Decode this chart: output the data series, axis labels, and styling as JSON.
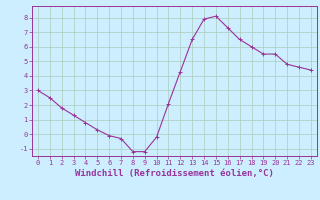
{
  "x": [
    0,
    1,
    2,
    3,
    4,
    5,
    6,
    7,
    8,
    9,
    10,
    11,
    12,
    13,
    14,
    15,
    16,
    17,
    18,
    19,
    20,
    21,
    22,
    23
  ],
  "y": [
    3.0,
    2.5,
    1.8,
    1.3,
    0.8,
    0.3,
    -0.1,
    -0.3,
    -1.2,
    -1.2,
    -0.2,
    2.1,
    4.3,
    6.5,
    7.9,
    8.1,
    7.3,
    6.5,
    6.0,
    5.5,
    5.5,
    4.8,
    4.6,
    4.4
  ],
  "line_color": "#993399",
  "marker": "+",
  "marker_size": 3,
  "bg_color": "#cceeff",
  "grid_color": "#aaccbb",
  "xlabel": "Windchill (Refroidissement éolien,°C)",
  "xlabel_color": "#993399",
  "ylim": [
    -1.5,
    8.8
  ],
  "xlim": [
    -0.5,
    23.5
  ],
  "yticks": [
    -1,
    0,
    1,
    2,
    3,
    4,
    5,
    6,
    7,
    8
  ],
  "xticks": [
    0,
    1,
    2,
    3,
    4,
    5,
    6,
    7,
    8,
    9,
    10,
    11,
    12,
    13,
    14,
    15,
    16,
    17,
    18,
    19,
    20,
    21,
    22,
    23
  ],
  "tick_fontsize": 5,
  "xlabel_fontsize": 6.5,
  "linewidth": 0.8,
  "markeredgewidth": 0.7
}
